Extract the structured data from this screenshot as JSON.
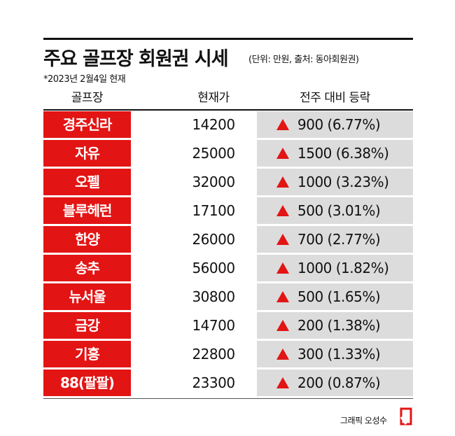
{
  "title": "주요 골프장 회원권 시세",
  "unit_note": "(단위: 만원, 출처: 동아회원권)",
  "date_note": "*2023년 2월4일 현재",
  "headers": {
    "name": "골프장",
    "price": "현재가",
    "change": "전주 대비 등락"
  },
  "rows": [
    {
      "name": "경주신라",
      "price": "14200",
      "change": "900 (6.77%)"
    },
    {
      "name": "자유",
      "price": "25000",
      "change": "1500 (6.38%)"
    },
    {
      "name": "오펠",
      "price": "32000",
      "change": "1000 (3.23%)"
    },
    {
      "name": "블루헤런",
      "price": "17100",
      "change": "500 (3.01%)"
    },
    {
      "name": "한양",
      "price": "26000",
      "change": "700 (2.77%)"
    },
    {
      "name": "송추",
      "price": "56000",
      "change": "1000 (1.82%)"
    },
    {
      "name": "뉴서울",
      "price": "30800",
      "change": "500 (1.65%)"
    },
    {
      "name": "금강",
      "price": "14700",
      "change": "200 (1.38%)"
    },
    {
      "name": "기흥",
      "price": "22800",
      "change": "300 (1.33%)"
    },
    {
      "name": "88(팔팔)",
      "price": "23300",
      "change": "200 (0.87%)"
    }
  ],
  "credit": "그래픽 오성수",
  "colors": {
    "accent": "#e31414",
    "change_bg": "#dcdcdc"
  },
  "icons": {
    "up": "up-triangle-icon",
    "logo": "brand-logo-icon"
  }
}
